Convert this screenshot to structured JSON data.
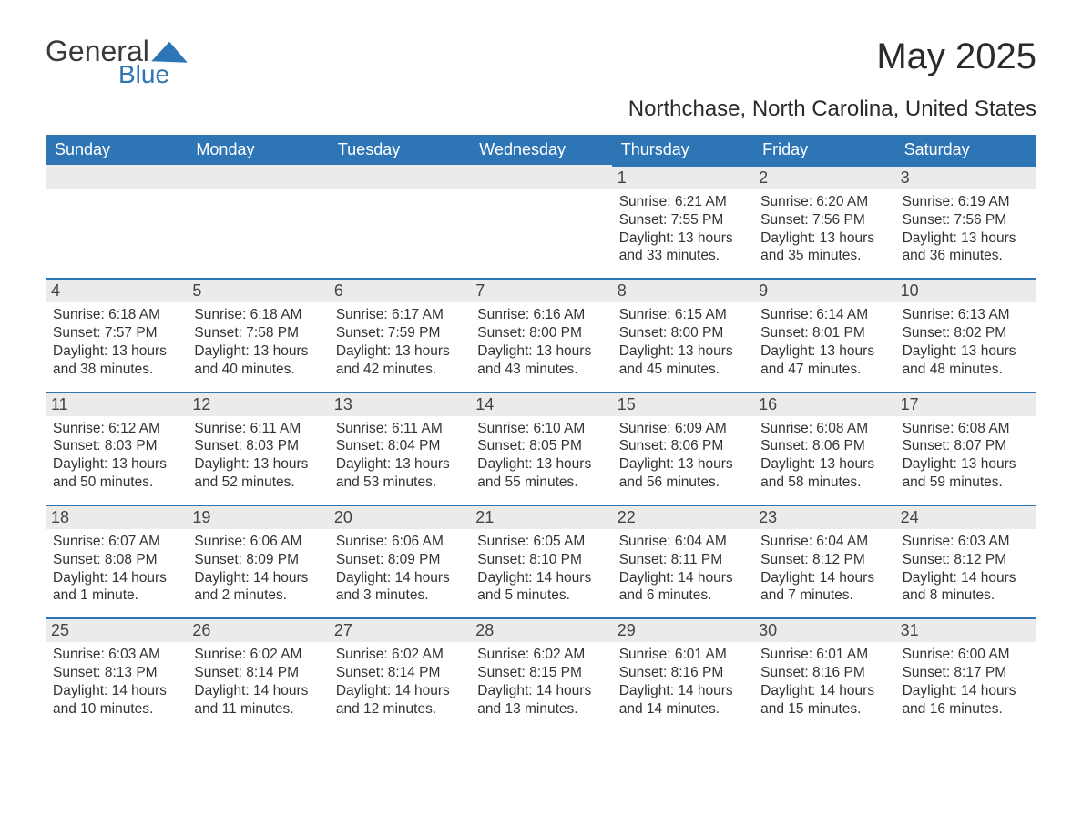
{
  "logo": {
    "word1": "General",
    "word2": "Blue",
    "color": "#2e75b6"
  },
  "title": "May 2025",
  "location": "Northchase, North Carolina, United States",
  "colors": {
    "header_bg": "#2e75b6",
    "header_text": "#ffffff",
    "daynum_bg": "#ebebeb",
    "border_top": "#2e75b6",
    "text": "#333333",
    "page_bg": "#ffffff"
  },
  "fontsizes": {
    "title": 40,
    "subtitle": 24,
    "dayhead": 18,
    "daynum": 18,
    "body": 15.5,
    "logo": 32
  },
  "day_headers": [
    "Sunday",
    "Monday",
    "Tuesday",
    "Wednesday",
    "Thursday",
    "Friday",
    "Saturday"
  ],
  "weeks": [
    [
      null,
      null,
      null,
      null,
      {
        "n": "1",
        "sunrise": "Sunrise: 6:21 AM",
        "sunset": "Sunset: 7:55 PM",
        "daylight": "Daylight: 13 hours and 33 minutes."
      },
      {
        "n": "2",
        "sunrise": "Sunrise: 6:20 AM",
        "sunset": "Sunset: 7:56 PM",
        "daylight": "Daylight: 13 hours and 35 minutes."
      },
      {
        "n": "3",
        "sunrise": "Sunrise: 6:19 AM",
        "sunset": "Sunset: 7:56 PM",
        "daylight": "Daylight: 13 hours and 36 minutes."
      }
    ],
    [
      {
        "n": "4",
        "sunrise": "Sunrise: 6:18 AM",
        "sunset": "Sunset: 7:57 PM",
        "daylight": "Daylight: 13 hours and 38 minutes."
      },
      {
        "n": "5",
        "sunrise": "Sunrise: 6:18 AM",
        "sunset": "Sunset: 7:58 PM",
        "daylight": "Daylight: 13 hours and 40 minutes."
      },
      {
        "n": "6",
        "sunrise": "Sunrise: 6:17 AM",
        "sunset": "Sunset: 7:59 PM",
        "daylight": "Daylight: 13 hours and 42 minutes."
      },
      {
        "n": "7",
        "sunrise": "Sunrise: 6:16 AM",
        "sunset": "Sunset: 8:00 PM",
        "daylight": "Daylight: 13 hours and 43 minutes."
      },
      {
        "n": "8",
        "sunrise": "Sunrise: 6:15 AM",
        "sunset": "Sunset: 8:00 PM",
        "daylight": "Daylight: 13 hours and 45 minutes."
      },
      {
        "n": "9",
        "sunrise": "Sunrise: 6:14 AM",
        "sunset": "Sunset: 8:01 PM",
        "daylight": "Daylight: 13 hours and 47 minutes."
      },
      {
        "n": "10",
        "sunrise": "Sunrise: 6:13 AM",
        "sunset": "Sunset: 8:02 PM",
        "daylight": "Daylight: 13 hours and 48 minutes."
      }
    ],
    [
      {
        "n": "11",
        "sunrise": "Sunrise: 6:12 AM",
        "sunset": "Sunset: 8:03 PM",
        "daylight": "Daylight: 13 hours and 50 minutes."
      },
      {
        "n": "12",
        "sunrise": "Sunrise: 6:11 AM",
        "sunset": "Sunset: 8:03 PM",
        "daylight": "Daylight: 13 hours and 52 minutes."
      },
      {
        "n": "13",
        "sunrise": "Sunrise: 6:11 AM",
        "sunset": "Sunset: 8:04 PM",
        "daylight": "Daylight: 13 hours and 53 minutes."
      },
      {
        "n": "14",
        "sunrise": "Sunrise: 6:10 AM",
        "sunset": "Sunset: 8:05 PM",
        "daylight": "Daylight: 13 hours and 55 minutes."
      },
      {
        "n": "15",
        "sunrise": "Sunrise: 6:09 AM",
        "sunset": "Sunset: 8:06 PM",
        "daylight": "Daylight: 13 hours and 56 minutes."
      },
      {
        "n": "16",
        "sunrise": "Sunrise: 6:08 AM",
        "sunset": "Sunset: 8:06 PM",
        "daylight": "Daylight: 13 hours and 58 minutes."
      },
      {
        "n": "17",
        "sunrise": "Sunrise: 6:08 AM",
        "sunset": "Sunset: 8:07 PM",
        "daylight": "Daylight: 13 hours and 59 minutes."
      }
    ],
    [
      {
        "n": "18",
        "sunrise": "Sunrise: 6:07 AM",
        "sunset": "Sunset: 8:08 PM",
        "daylight": "Daylight: 14 hours and 1 minute."
      },
      {
        "n": "19",
        "sunrise": "Sunrise: 6:06 AM",
        "sunset": "Sunset: 8:09 PM",
        "daylight": "Daylight: 14 hours and 2 minutes."
      },
      {
        "n": "20",
        "sunrise": "Sunrise: 6:06 AM",
        "sunset": "Sunset: 8:09 PM",
        "daylight": "Daylight: 14 hours and 3 minutes."
      },
      {
        "n": "21",
        "sunrise": "Sunrise: 6:05 AM",
        "sunset": "Sunset: 8:10 PM",
        "daylight": "Daylight: 14 hours and 5 minutes."
      },
      {
        "n": "22",
        "sunrise": "Sunrise: 6:04 AM",
        "sunset": "Sunset: 8:11 PM",
        "daylight": "Daylight: 14 hours and 6 minutes."
      },
      {
        "n": "23",
        "sunrise": "Sunrise: 6:04 AM",
        "sunset": "Sunset: 8:12 PM",
        "daylight": "Daylight: 14 hours and 7 minutes."
      },
      {
        "n": "24",
        "sunrise": "Sunrise: 6:03 AM",
        "sunset": "Sunset: 8:12 PM",
        "daylight": "Daylight: 14 hours and 8 minutes."
      }
    ],
    [
      {
        "n": "25",
        "sunrise": "Sunrise: 6:03 AM",
        "sunset": "Sunset: 8:13 PM",
        "daylight": "Daylight: 14 hours and 10 minutes."
      },
      {
        "n": "26",
        "sunrise": "Sunrise: 6:02 AM",
        "sunset": "Sunset: 8:14 PM",
        "daylight": "Daylight: 14 hours and 11 minutes."
      },
      {
        "n": "27",
        "sunrise": "Sunrise: 6:02 AM",
        "sunset": "Sunset: 8:14 PM",
        "daylight": "Daylight: 14 hours and 12 minutes."
      },
      {
        "n": "28",
        "sunrise": "Sunrise: 6:02 AM",
        "sunset": "Sunset: 8:15 PM",
        "daylight": "Daylight: 14 hours and 13 minutes."
      },
      {
        "n": "29",
        "sunrise": "Sunrise: 6:01 AM",
        "sunset": "Sunset: 8:16 PM",
        "daylight": "Daylight: 14 hours and 14 minutes."
      },
      {
        "n": "30",
        "sunrise": "Sunrise: 6:01 AM",
        "sunset": "Sunset: 8:16 PM",
        "daylight": "Daylight: 14 hours and 15 minutes."
      },
      {
        "n": "31",
        "sunrise": "Sunrise: 6:00 AM",
        "sunset": "Sunset: 8:17 PM",
        "daylight": "Daylight: 14 hours and 16 minutes."
      }
    ]
  ]
}
